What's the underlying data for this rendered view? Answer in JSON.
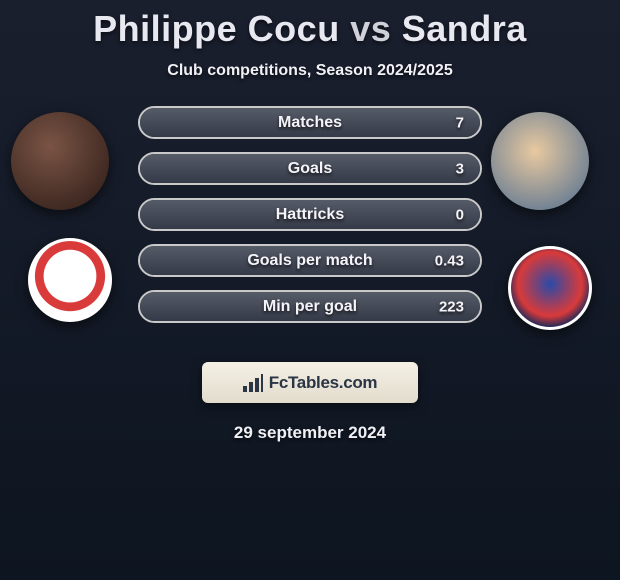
{
  "colors": {
    "bg_top": "#1a1f2e",
    "bg_bottom": "#0d1520",
    "title": "#e8e8f0",
    "text": "#f0f0f5",
    "bar_border": "#c9c9c9",
    "bar_fill_top": "#565b68",
    "bar_fill_bottom": "#353a48",
    "footer_bg_top": "#f4f0e6",
    "footer_bg_bottom": "#e2dccc",
    "footer_text": "#2a3545"
  },
  "title": {
    "player1": "Philippe Cocu",
    "vs": "vs",
    "player2": "Sandra"
  },
  "subtitle": "Club competitions, Season 2024/2025",
  "stats": [
    {
      "label": "Matches",
      "value": "7",
      "fill_pct": 100
    },
    {
      "label": "Goals",
      "value": "3",
      "fill_pct": 100
    },
    {
      "label": "Hattricks",
      "value": "0",
      "fill_pct": 100
    },
    {
      "label": "Goals per match",
      "value": "0.43",
      "fill_pct": 100
    },
    {
      "label": "Min per goal",
      "value": "223",
      "fill_pct": 100
    }
  ],
  "footer": {
    "brand": "FcTables.com"
  },
  "date": "29 september 2024",
  "entities": {
    "player1_avatar": "philippe-cocu-portrait",
    "player2_avatar": "sandra-portrait",
    "club1_logo": "psv-eindhoven-crest",
    "club2_logo": "willem-ii-tilburg-crest"
  }
}
